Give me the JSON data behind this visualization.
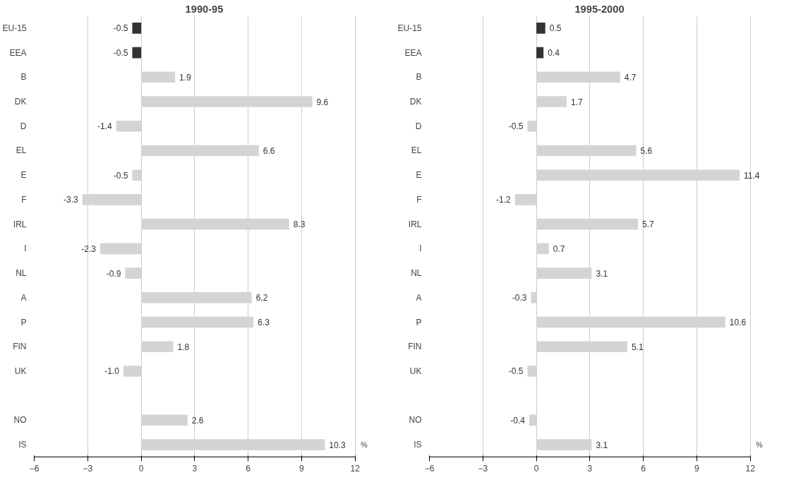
{
  "chart_data": [
    {
      "type": "bar",
      "orientation": "horizontal",
      "title": "1990-95",
      "categories": [
        "EU-15",
        "EEA",
        "B",
        "DK",
        "D",
        "EL",
        "E",
        "F",
        "IRL",
        "I",
        "NL",
        "A",
        "P",
        "FIN",
        "UK",
        null,
        "NO",
        "IS"
      ],
      "values": [
        -0.5,
        -0.5,
        1.9,
        9.6,
        -1.4,
        6.6,
        -0.5,
        -3.3,
        8.3,
        -2.3,
        -0.9,
        6.2,
        6.3,
        1.8,
        -1.0,
        null,
        2.6,
        10.3
      ],
      "value_labels": [
        "-0.5",
        "-0.5",
        "1.9",
        "9.6",
        "-1.4",
        "6.6",
        "-0.5",
        "-3.3",
        "8.3",
        "-2.3",
        "-0.9",
        "6.2",
        "6.3",
        "1.8",
        "-1.0",
        null,
        "2.6",
        "10.3"
      ],
      "colors": [
        "#333333",
        "#333333",
        "#d4d4d4",
        "#d4d4d4",
        "#d4d4d4",
        "#d4d4d4",
        "#d4d4d4",
        "#d4d4d4",
        "#d4d4d4",
        "#d4d4d4",
        "#d4d4d4",
        "#d4d4d4",
        "#d4d4d4",
        "#d4d4d4",
        "#d4d4d4",
        "#d4d4d4",
        "#d4d4d4",
        "#d4d4d4"
      ],
      "xlim": [
        -6,
        12
      ],
      "xticks": [
        -6,
        -3,
        0,
        3,
        6,
        9,
        12
      ],
      "grid": "x",
      "annotations": [
        "%"
      ]
    },
    {
      "type": "bar",
      "orientation": "horizontal",
      "title": "1995-2000",
      "categories": [
        "EU-15",
        "EEA",
        "B",
        "DK",
        "D",
        "EL",
        "E",
        "F",
        "IRL",
        "I",
        "NL",
        "A",
        "P",
        "FIN",
        "UK",
        null,
        "NO",
        "IS"
      ],
      "values": [
        0.5,
        0.4,
        4.7,
        1.7,
        -0.5,
        5.6,
        11.4,
        -1.2,
        5.7,
        0.7,
        3.1,
        -0.3,
        10.6,
        5.1,
        -0.5,
        null,
        -0.4,
        3.1
      ],
      "colors": [
        "#333333",
        "#333333",
        "#d4d4d4",
        "#d4d4d4",
        "#d4d4d4",
        "#d4d4d4",
        "#d4d4d4",
        "#d4d4d4",
        "#d4d4d4",
        "#d4d4d4",
        "#d4d4d4",
        "#d4d4d4",
        "#d4d4d4",
        "#d4d4d4",
        "#d4d4d4",
        "#d4d4d4",
        "#d4d4d4",
        "#d4d4d4"
      ],
      "xlim": [
        -6,
        12
      ],
      "xticks": [
        -6,
        -3,
        0,
        3,
        6,
        9,
        12
      ],
      "grid": "x",
      "data_labels": true,
      "annotations": [
        "%"
      ]
    }
  ]
}
